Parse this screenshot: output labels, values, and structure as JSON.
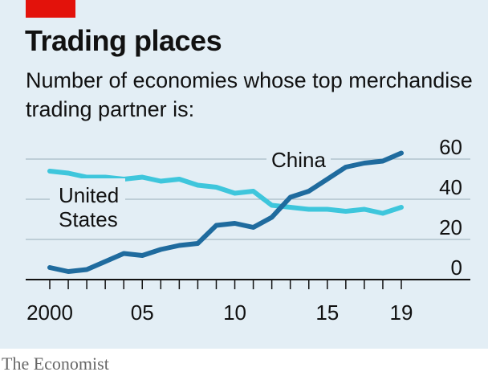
{
  "header": {
    "title": "Trading places",
    "subtitle": "Number of economies whose top merchandise trading partner is:"
  },
  "source": "The Economist",
  "chart_data": {
    "type": "line",
    "title": "Trading places",
    "subtitle": "Number of economies whose top merchandise trading partner is:",
    "xlabel": "",
    "ylabel": "",
    "xlim": [
      2000,
      2019
    ],
    "ylim": [
      0,
      60
    ],
    "x": [
      2000,
      2001,
      2002,
      2003,
      2004,
      2005,
      2006,
      2007,
      2008,
      2009,
      2010,
      2011,
      2012,
      2013,
      2014,
      2015,
      2016,
      2017,
      2018,
      2019
    ],
    "x_tick_labels": [
      {
        "x": 2000,
        "label": "2000"
      },
      {
        "x": 2005,
        "label": "05"
      },
      {
        "x": 2010,
        "label": "10"
      },
      {
        "x": 2015,
        "label": "15"
      },
      {
        "x": 2019,
        "label": "19"
      }
    ],
    "y_ticks": [
      0,
      20,
      40,
      60
    ],
    "y_tick_labels": [
      "0",
      "20",
      "40",
      "60"
    ],
    "grid": true,
    "series": [
      {
        "name": "China",
        "label_lines": [
          "China"
        ],
        "color": "#1f6b9e",
        "values": [
          6,
          4,
          5,
          9,
          13,
          12,
          15,
          17,
          18,
          27,
          28,
          26,
          31,
          41,
          44,
          50,
          56,
          58,
          59,
          63
        ]
      },
      {
        "name": "United States",
        "label_lines": [
          "United",
          "States"
        ],
        "color": "#3ec6dc",
        "values": [
          54,
          53,
          51,
          51,
          50,
          51,
          49,
          50,
          47,
          46,
          43,
          44,
          37,
          36,
          35,
          35,
          34,
          35,
          33,
          36
        ]
      }
    ]
  }
}
